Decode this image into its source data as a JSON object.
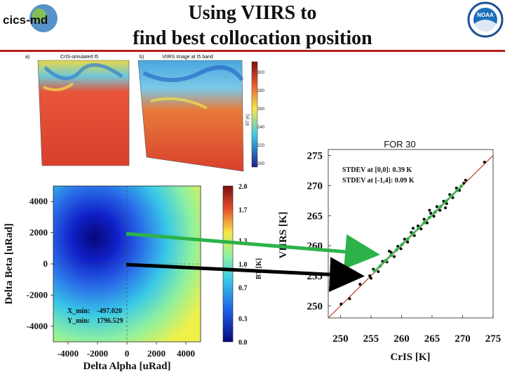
{
  "header": {
    "logo_left_text": "cics-md",
    "logo_right_text": "NOAA",
    "title_line1": "Using VIIRS to",
    "title_line2": "find best collocation position",
    "accent": "#b22222"
  },
  "top_images": {
    "left_panel_letter": "a)",
    "left_panel_title": "CrIS-simulated I5",
    "right_panel_letter": "b)",
    "right_panel_title": "VIIRS Image at I5 band",
    "colorbar_label": "BT [K]",
    "colorbar_ticks": [
      "300",
      "280",
      "260",
      "240",
      "220",
      "200"
    ]
  },
  "chart_data": [
    {
      "type": "heatmap",
      "xlabel": "Delta Alpha [uRad]",
      "ylabel": "Delta Beta [uRad]",
      "xlim": [
        -5000,
        5000
      ],
      "ylim": [
        -5000,
        5000
      ],
      "x_ticks": [
        "-4000",
        "-2000",
        "0",
        "2000",
        "4000"
      ],
      "y_ticks": [
        "4000",
        "2000",
        "0",
        "-2000",
        "-4000"
      ],
      "minimum": {
        "x": -497.02,
        "y": 1796.529
      },
      "colorbar": {
        "label": "BT [K]",
        "range": [
          0.0,
          2.0
        ],
        "ticks": [
          "2.0",
          "1.7",
          "1.3",
          "1.0",
          "0.7",
          "0.3",
          "0.0"
        ]
      },
      "annotations": [
        {
          "label": "X_min:",
          "value": "-497.020"
        },
        {
          "label": "Y_min:",
          "value": "1796.529"
        }
      ]
    },
    {
      "type": "scatter",
      "title": "FOR 30",
      "xlabel": "CrIS [K]",
      "ylabel": "VIIRS [K]",
      "xlim": [
        248,
        275
      ],
      "ylim": [
        248,
        276
      ],
      "x_ticks": [
        "250",
        "255",
        "260",
        "265",
        "270",
        "275"
      ],
      "y_ticks": [
        "275",
        "270",
        "265",
        "260",
        "255",
        "250"
      ],
      "annotations": [
        "STDEV at [0,0]: 0.39 K",
        "STDEV at [-1,4]: 0.09 K"
      ],
      "series": [
        {
          "name": "[0,0]",
          "color": "#000000",
          "points": [
            [
              250.1,
              250.3
            ],
            [
              251.5,
              251.2
            ],
            [
              253.2,
              253.6
            ],
            [
              254.8,
              255.0
            ],
            [
              255.4,
              256.1
            ],
            [
              256.2,
              255.7
            ],
            [
              256.9,
              257.4
            ],
            [
              257.6,
              257.3
            ],
            [
              258.3,
              258.9
            ],
            [
              258.8,
              258.2
            ],
            [
              259.4,
              259.9
            ],
            [
              259.9,
              259.5
            ],
            [
              260.5,
              261.1
            ],
            [
              261.0,
              260.6
            ],
            [
              261.6,
              262.2
            ],
            [
              262.1,
              261.7
            ],
            [
              262.7,
              263.3
            ],
            [
              263.2,
              262.8
            ],
            [
              263.7,
              264.4
            ],
            [
              264.2,
              263.8
            ],
            [
              264.8,
              265.4
            ],
            [
              265.3,
              264.9
            ],
            [
              265.8,
              266.5
            ],
            [
              266.3,
              265.9
            ],
            [
              266.9,
              267.4
            ],
            [
              267.4,
              267.0
            ],
            [
              267.9,
              268.5
            ],
            [
              268.4,
              268.0
            ],
            [
              269.0,
              269.6
            ],
            [
              269.5,
              269.2
            ],
            [
              270.5,
              270.9
            ],
            [
              273.6,
              273.9
            ],
            [
              261.9,
              262.9
            ],
            [
              264.6,
              265.9
            ],
            [
              267.2,
              266.3
            ],
            [
              258.0,
              259.1
            ],
            [
              255.0,
              254.6
            ],
            [
              270.2,
              270.4
            ]
          ]
        },
        {
          "name": "[-1,4]",
          "color": "#2db24a",
          "points": [
            [
              255.6,
              255.8
            ],
            [
              256.5,
              256.6
            ],
            [
              257.4,
              257.5
            ],
            [
              258.3,
              258.4
            ],
            [
              259.2,
              259.3
            ],
            [
              260.1,
              260.2
            ],
            [
              261.0,
              261.1
            ],
            [
              261.9,
              262.0
            ],
            [
              262.8,
              262.9
            ],
            [
              263.7,
              263.8
            ],
            [
              264.6,
              264.7
            ],
            [
              265.5,
              265.6
            ],
            [
              266.4,
              266.5
            ],
            [
              267.3,
              267.4
            ],
            [
              268.2,
              268.3
            ],
            [
              269.1,
              269.2
            ],
            [
              269.8,
              269.9
            ]
          ]
        }
      ],
      "reference_line": "1:1",
      "reference_line_color": "#c0392b"
    }
  ],
  "arrows": {
    "green_color": "#2db24a",
    "black_color": "#000000"
  }
}
